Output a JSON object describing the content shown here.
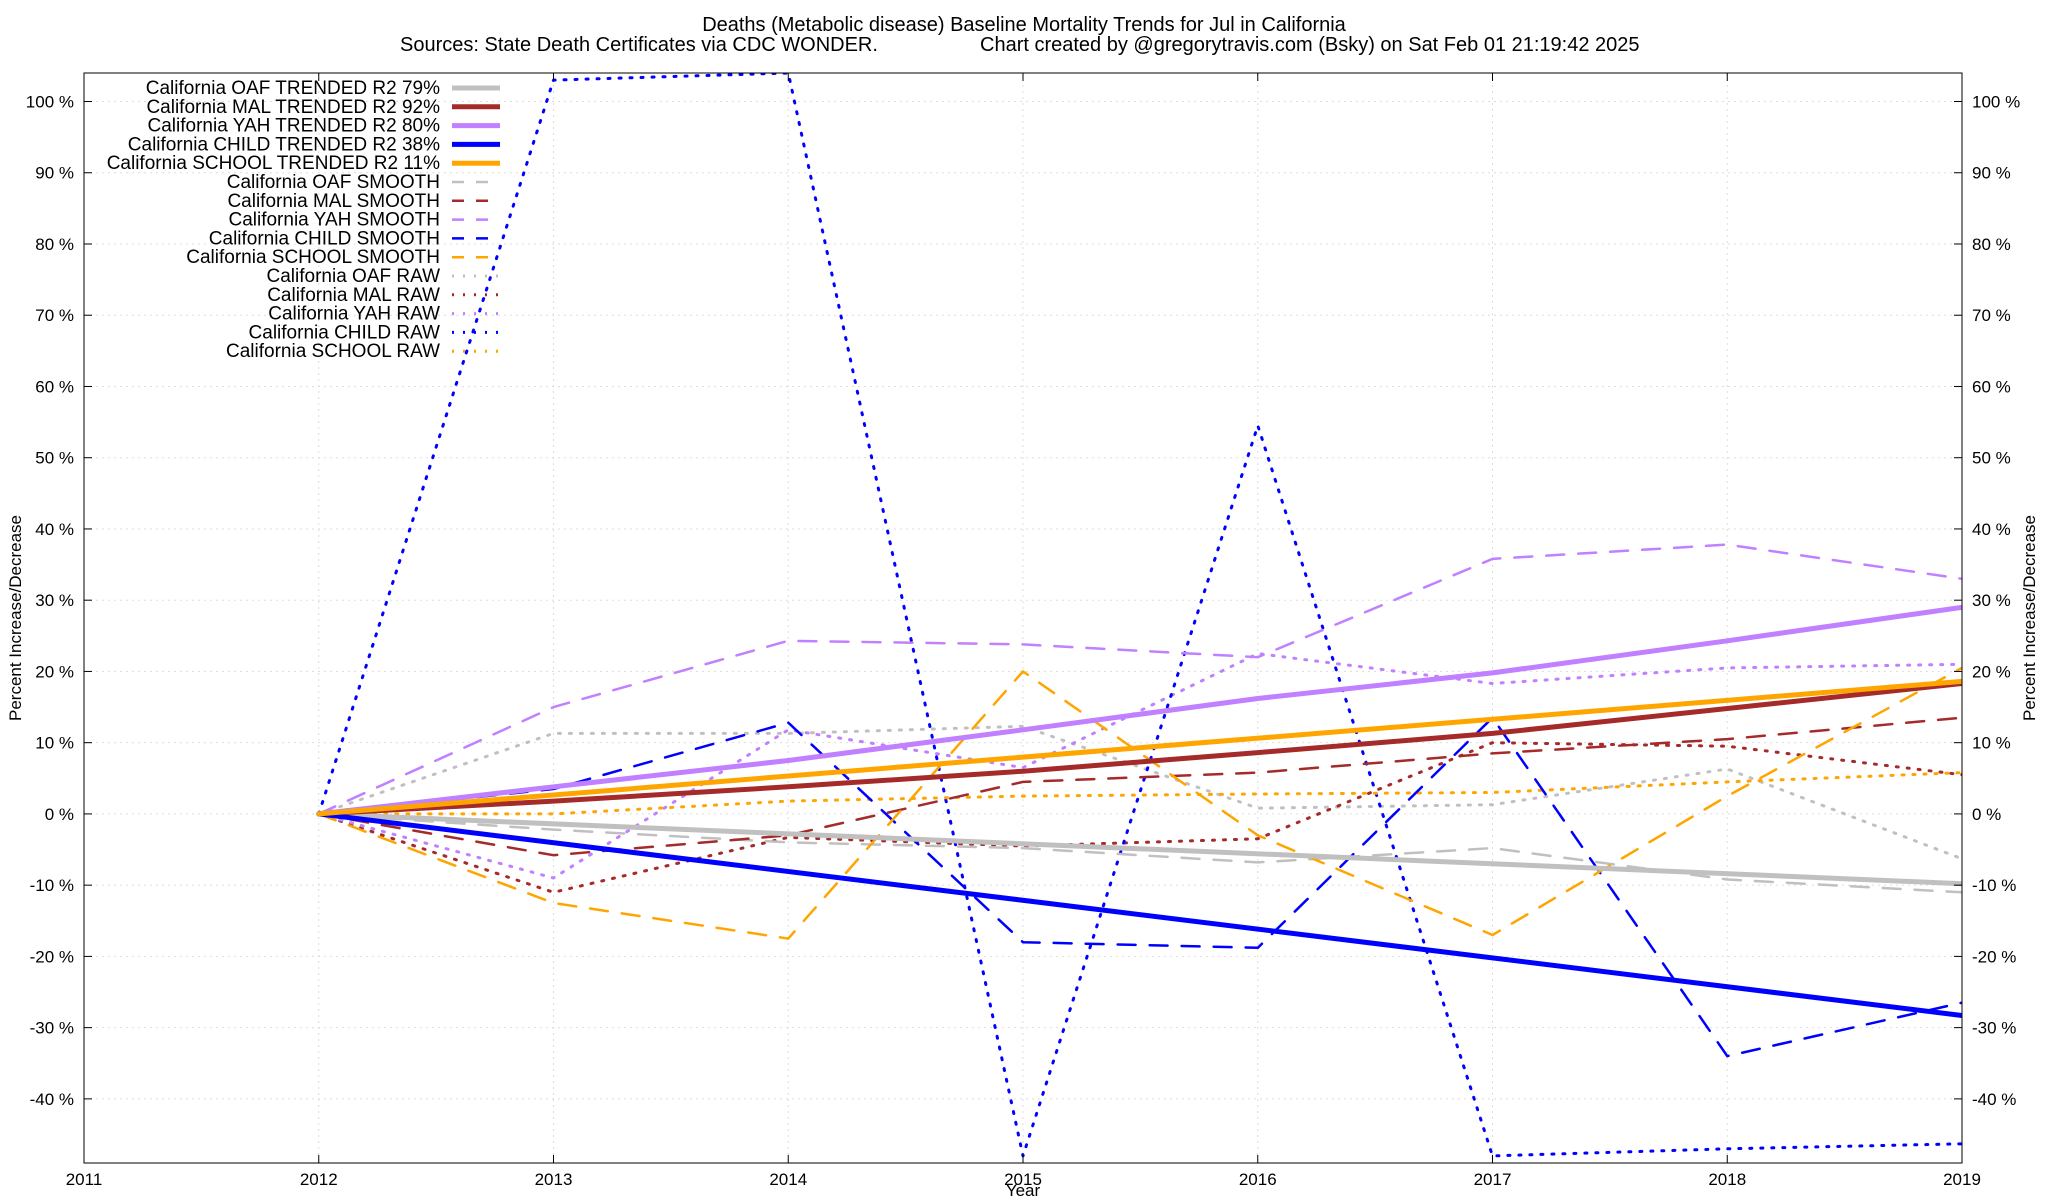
{
  "chart_data": {
    "type": "line",
    "title": "Deaths (Metabolic disease)  Baseline Mortality Trends for Jul in California",
    "subtitle_left": "Sources: State Death Certificates via CDC WONDER.",
    "subtitle_right": "Chart created by @gregorytravis.com (Bsky) on Sat Feb 01 21:19:42 2025",
    "xlabel": "Year",
    "ylabel": "Percent Increase/Decrease",
    "y2label": "Percent Increase/Decrease",
    "xlim": [
      2011,
      2019
    ],
    "ylim": [
      -49,
      104
    ],
    "xticks": [
      "2011",
      "2012",
      "2013",
      "2014",
      "2015",
      "2016",
      "2017",
      "2018",
      "2019"
    ],
    "yticks": [
      "100 %",
      "90 %",
      "80 %",
      "70 %",
      "60 %",
      "50 %",
      "40 %",
      "30 %",
      "20 %",
      "10 %",
      "0 %",
      "-10 %",
      "-20 %",
      "-30 %",
      "-40 %"
    ],
    "grid": true,
    "legend_position": "top-left",
    "series": [
      {
        "name": "California OAF TRENDED R2  79%",
        "style": "solid",
        "color": "#c0c0c0",
        "x": [
          2012,
          2019
        ],
        "values": [
          0,
          -9.8
        ]
      },
      {
        "name": "California MAL TRENDED R2  92%",
        "style": "solid",
        "color": "#a52a2a",
        "x": [
          2012,
          2013,
          2014,
          2015,
          2016,
          2017,
          2018,
          2019
        ],
        "values": [
          0,
          1.8,
          3.8,
          6.0,
          8.6,
          11.3,
          14.8,
          18.3
        ]
      },
      {
        "name": "California YAH TRENDED R2  80%",
        "style": "solid",
        "color": "#c080ff",
        "x": [
          2012,
          2013,
          2014,
          2015,
          2016,
          2017,
          2018,
          2019
        ],
        "values": [
          0,
          3.8,
          7.5,
          11.8,
          16.2,
          19.8,
          24.3,
          29.0
        ]
      },
      {
        "name": "California CHILD TRENDED R2  38%",
        "style": "solid",
        "color": "#0000ff",
        "x": [
          2012,
          2019
        ],
        "values": [
          0,
          -28.3
        ]
      },
      {
        "name": "California SCHOOL TRENDED R2  11%",
        "style": "solid",
        "color": "#ffa500",
        "x": [
          2012,
          2019
        ],
        "values": [
          0,
          18.6
        ]
      },
      {
        "name": "California OAF SMOOTH",
        "style": "dashed",
        "color": "#c0c0c0",
        "x": [
          2012,
          2013,
          2014,
          2015,
          2016,
          2017,
          2018,
          2019
        ],
        "values": [
          0,
          -2.2,
          -4.0,
          -4.8,
          -6.8,
          -4.8,
          -9.2,
          -11.0
        ]
      },
      {
        "name": "California MAL SMOOTH",
        "style": "dashed",
        "color": "#a52a2a",
        "x": [
          2012,
          2013,
          2014,
          2015,
          2016,
          2017,
          2018,
          2019
        ],
        "values": [
          0,
          -5.8,
          -3.0,
          4.5,
          5.8,
          8.5,
          10.5,
          13.5
        ]
      },
      {
        "name": "California YAH SMOOTH",
        "style": "dashed",
        "color": "#c080ff",
        "x": [
          2012,
          2013,
          2014,
          2015,
          2016,
          2017,
          2018,
          2019
        ],
        "values": [
          0,
          15.0,
          24.3,
          23.8,
          22.0,
          35.8,
          37.8,
          33.0
        ]
      },
      {
        "name": "California CHILD SMOOTH",
        "style": "dashed",
        "color": "#0000ff",
        "x": [
          2012,
          2013,
          2014,
          2015,
          2016,
          2017,
          2018,
          2019
        ],
        "values": [
          0,
          3.5,
          12.8,
          -18.0,
          -18.8,
          13.5,
          -34.0,
          -26.5
        ]
      },
      {
        "name": "California SCHOOL SMOOTH",
        "style": "dashed",
        "color": "#ffa500",
        "x": [
          2012,
          2013,
          2014,
          2015,
          2016,
          2017,
          2018,
          2019
        ],
        "values": [
          0,
          -12.5,
          -17.5,
          20.0,
          -3.0,
          -17.0,
          2.5,
          20.5
        ]
      },
      {
        "name": "California OAF RAW",
        "style": "dotted",
        "color": "#c0c0c0",
        "x": [
          2012,
          2013,
          2014,
          2015,
          2016,
          2017,
          2018,
          2019
        ],
        "values": [
          0,
          11.3,
          11.3,
          12.3,
          0.8,
          1.3,
          6.3,
          -6.3
        ]
      },
      {
        "name": "California MAL RAW",
        "style": "dotted",
        "color": "#a52a2a",
        "x": [
          2012,
          2013,
          2014,
          2015,
          2016,
          2017,
          2018,
          2019
        ],
        "values": [
          0,
          -11.0,
          -3.3,
          -4.5,
          -3.5,
          10.0,
          9.5,
          5.5
        ]
      },
      {
        "name": "California YAH RAW",
        "style": "dotted",
        "color": "#c080ff",
        "x": [
          2012,
          2013,
          2014,
          2015,
          2016,
          2017,
          2018,
          2019
        ],
        "values": [
          0,
          -9.0,
          11.8,
          6.5,
          22.5,
          18.3,
          20.5,
          21.0
        ]
      },
      {
        "name": "California CHILD RAW",
        "style": "dotted",
        "color": "#0000ff",
        "x": [
          2012,
          2013,
          2014,
          2015,
          2016,
          2017,
          2018,
          2019
        ],
        "values": [
          0,
          103.0,
          104.0,
          -48.0,
          54.5,
          -48.0,
          -47.0,
          -46.3
        ]
      },
      {
        "name": "California SCHOOL RAW",
        "style": "dotted",
        "color": "#ffa500",
        "x": [
          2012,
          2013,
          2014,
          2015,
          2016,
          2017,
          2018,
          2019
        ],
        "values": [
          0,
          0,
          1.8,
          2.5,
          2.8,
          3.0,
          4.5,
          5.8
        ]
      }
    ]
  }
}
